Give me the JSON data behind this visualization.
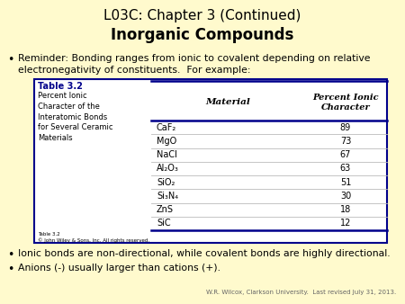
{
  "title_line1": "L03C: Chapter 3 (Continued)",
  "title_line2": "Inorganic Compounds",
  "bg_color": "#FFFACD",
  "bullet1a": "Reminder: Bonding ranges from ionic to covalent depending on relative",
  "bullet1b": "electronegativity of constituents.  For example:",
  "table_title": "Table 3.2",
  "table_subtitle_lines": [
    "Percent Ionic",
    "Character of the",
    "Interatomic Bonds",
    "for Several Ceramic",
    "Materials"
  ],
  "table_col1_header": "Material",
  "table_col2_header": "Percent Ionic\nCharacter",
  "table_materials": [
    "CaF₂",
    "MgO",
    "NaCl",
    "Al₂O₃",
    "SiO₂",
    "Si₃N₄",
    "ZnS",
    "SiC"
  ],
  "table_values": [
    "89",
    "73",
    "67",
    "63",
    "51",
    "30",
    "18",
    "12"
  ],
  "table_note1": "Table 3.2",
  "table_note2": "© John Wiley & Sons, Inc. All rights reserved.",
  "bullet2": "Ionic bonds are non-directional, while covalent bonds are highly directional.",
  "bullet3": "Anions (-) usually larger than cations (+).",
  "footer": "W.R. Wilcox, Clarkson University.  Last revised July 31, 2013.",
  "table_header_color": "#00008B",
  "table_border_color": "#00008B",
  "table_bg_color": "#FFFFFF",
  "title_color": "#000000"
}
